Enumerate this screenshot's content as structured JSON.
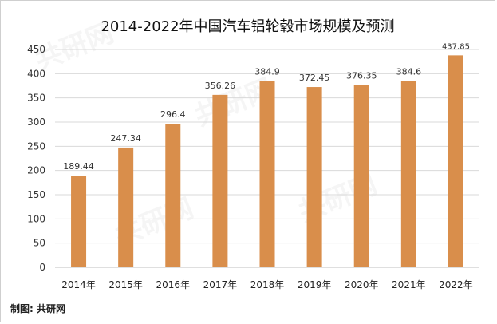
{
  "watermark_text": "共研网",
  "source_label": "制图: 共研网",
  "chart_data": {
    "type": "bar",
    "title": "2014-2022年中国汽车铝轮毂市场规模及预测",
    "xlabel": "",
    "ylabel": "",
    "categories": [
      "2014年",
      "2015年",
      "2016年",
      "2017年",
      "2018年",
      "2019年",
      "2020年",
      "2021年",
      "2022年"
    ],
    "values": [
      189.44,
      247.34,
      296.4,
      356.26,
      384.9,
      372.45,
      376.35,
      384.6,
      437.85
    ],
    "value_labels": [
      "189.44",
      "247.34",
      "296.4",
      "356.26",
      "384.9",
      "372.45",
      "376.35",
      "384.6",
      "437.85"
    ],
    "yticks": [
      0,
      50,
      100,
      150,
      200,
      250,
      300,
      350,
      400,
      450
    ],
    "ylim": [
      0,
      450
    ],
    "grid": true,
    "legend": "none",
    "bar_color": "#D98E4B"
  }
}
